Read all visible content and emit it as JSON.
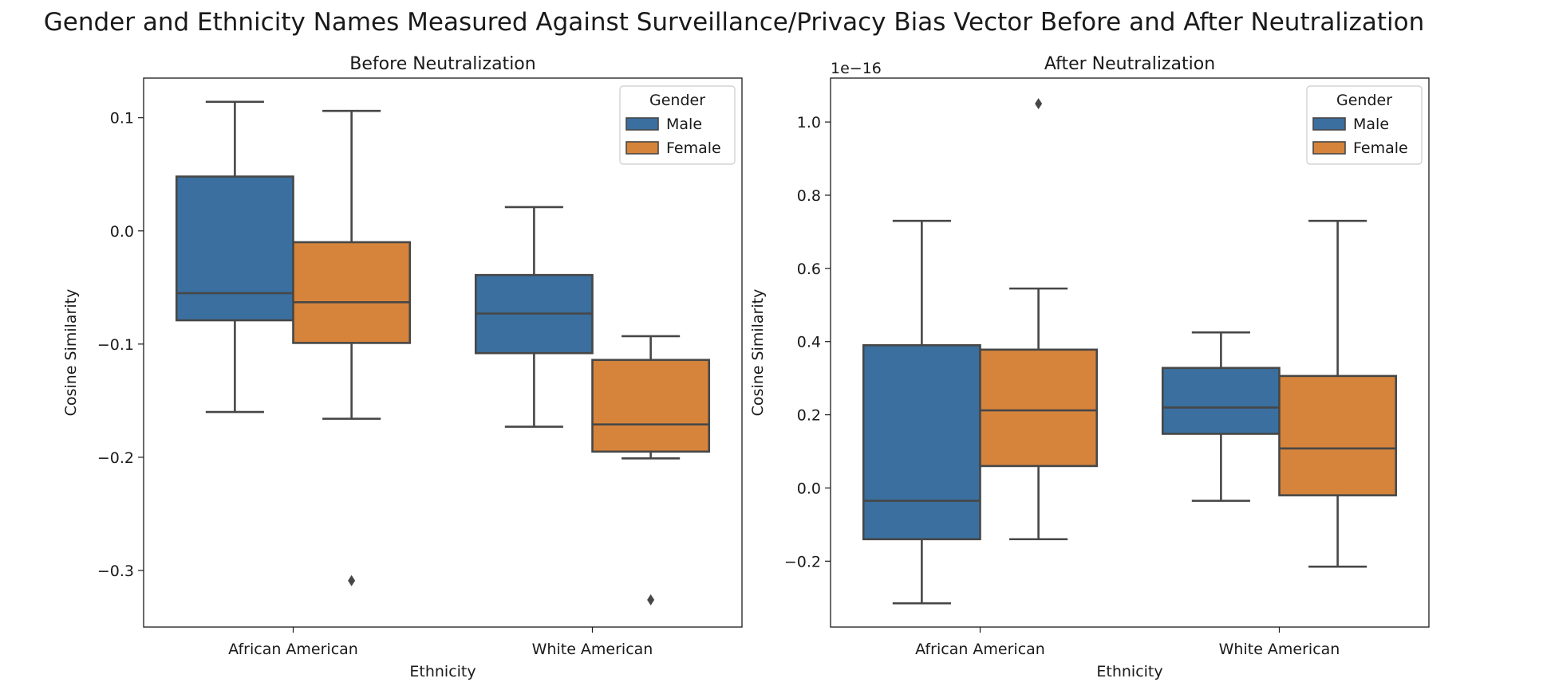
{
  "figure": {
    "title": "Gender and Ethnicity Names Measured Against Surveillance/Privacy Bias Vector Before and After Neutralization"
  },
  "colors": {
    "male": "#3a6f9f",
    "female": "#d6843b",
    "line": "#474747"
  },
  "chart_data": [
    {
      "type": "box",
      "title": "Before Neutralization",
      "xlabel": "Ethnicity",
      "ylabel": "Cosine Similarity",
      "offset_label": "",
      "ylim": [
        -0.35,
        0.135
      ],
      "yticks": [
        -0.3,
        -0.2,
        -0.1,
        0.0,
        0.1
      ],
      "ytick_labels": [
        "−0.3",
        "−0.2",
        "−0.1",
        "0.0",
        "0.1"
      ],
      "categories": [
        "African American",
        "White American"
      ],
      "legend": {
        "title": "Gender",
        "entries": [
          "Male",
          "Female"
        ],
        "placement": "upper right"
      },
      "series": [
        {
          "name": "Male",
          "color": "#3a6f9f",
          "boxes": [
            {
              "whisker_low": -0.16,
              "q1": -0.079,
              "median": -0.055,
              "q3": 0.048,
              "whisker_high": 0.114,
              "outliers": []
            },
            {
              "whisker_low": -0.173,
              "q1": -0.108,
              "median": -0.073,
              "q3": -0.039,
              "whisker_high": 0.021,
              "outliers": []
            }
          ]
        },
        {
          "name": "Female",
          "color": "#d6843b",
          "boxes": [
            {
              "whisker_low": -0.166,
              "q1": -0.099,
              "median": -0.063,
              "q3": -0.01,
              "whisker_high": 0.106,
              "outliers": [
                -0.309
              ]
            },
            {
              "whisker_low": -0.201,
              "q1": -0.195,
              "median": -0.171,
              "q3": -0.114,
              "whisker_high": -0.093,
              "outliers": [
                -0.326
              ]
            }
          ]
        }
      ]
    },
    {
      "type": "box",
      "title": "After Neutralization",
      "xlabel": "Ethnicity",
      "ylabel": "Cosine Similarity",
      "offset_label": "1e−16",
      "ylim": [
        -0.38,
        1.12
      ],
      "yticks": [
        -0.2,
        0.0,
        0.2,
        0.4,
        0.6,
        0.8,
        1.0
      ],
      "ytick_labels": [
        "−0.2",
        "0.0",
        "0.2",
        "0.4",
        "0.6",
        "0.8",
        "1.0"
      ],
      "categories": [
        "African American",
        "White American"
      ],
      "legend": {
        "title": "Gender",
        "entries": [
          "Male",
          "Female"
        ],
        "placement": "upper right"
      },
      "series": [
        {
          "name": "Male",
          "color": "#3a6f9f",
          "boxes": [
            {
              "whisker_low": -0.315,
              "q1": -0.14,
              "median": -0.035,
              "q3": 0.39,
              "whisker_high": 0.73,
              "outliers": []
            },
            {
              "whisker_low": -0.035,
              "q1": 0.148,
              "median": 0.22,
              "q3": 0.328,
              "whisker_high": 0.425,
              "outliers": []
            }
          ]
        },
        {
          "name": "Female",
          "color": "#d6843b",
          "boxes": [
            {
              "whisker_low": -0.14,
              "q1": 0.06,
              "median": 0.212,
              "q3": 0.378,
              "whisker_high": 0.545,
              "outliers": [
                1.05
              ]
            },
            {
              "whisker_low": -0.215,
              "q1": -0.02,
              "median": 0.108,
              "q3": 0.306,
              "whisker_high": 0.73,
              "outliers": []
            }
          ]
        }
      ]
    }
  ]
}
